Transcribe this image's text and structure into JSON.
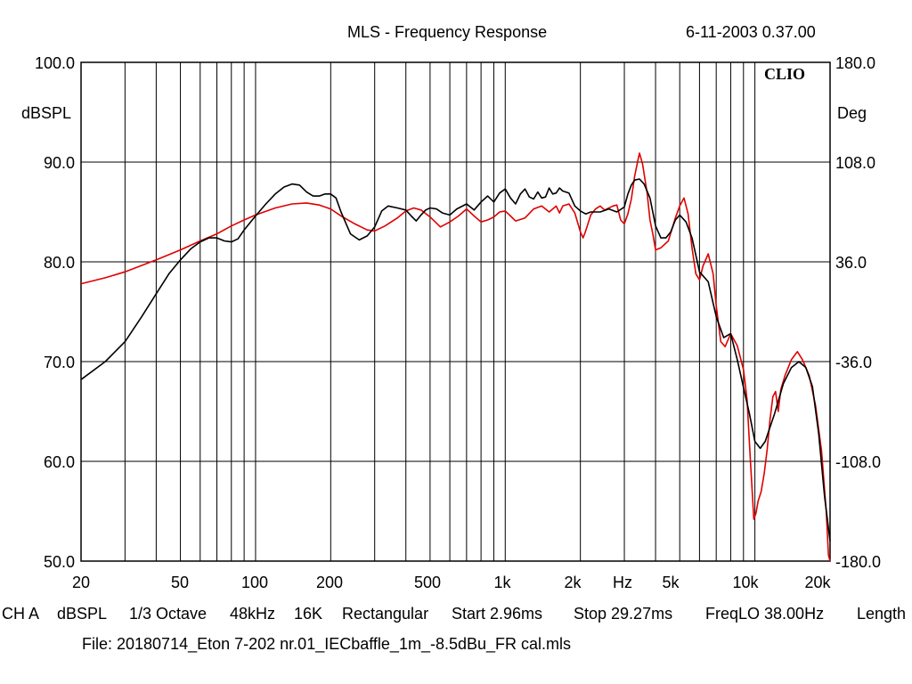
{
  "header": {
    "title": "MLS - Frequency Response",
    "datetime": "6-11-2003 0.37.00"
  },
  "brand": "CLIO",
  "axes": {
    "left_unit": "dBSPL",
    "right_unit": "Deg",
    "left_ticks": [
      "100.0",
      "90.0",
      "80.0",
      "70.0",
      "60.0",
      "50.0"
    ],
    "right_ticks": [
      "180.0",
      "108.0",
      "36.0",
      "-36.0",
      "-108.0",
      "-180.0"
    ],
    "x_ticks": [
      "20",
      "50",
      "100",
      "200",
      "500",
      "1k",
      "2k",
      "Hz",
      "5k",
      "10k",
      "20k"
    ]
  },
  "footer": {
    "settings": [
      "CH A",
      "dBSPL",
      "1/3 Octave",
      "48kHz",
      "16K",
      "Rectangular",
      "Start 2.96ms",
      "Stop 29.27ms",
      "FreqLO 38.00Hz",
      "Length"
    ],
    "file": "File: 20180714_Eton 7-202 nr.01_IECbaffle_1m_-8.5dBu_FR cal.mls"
  },
  "colors": {
    "series_black": "#000000",
    "series_red": "#e00000",
    "grid": "#000000",
    "background": "#ffffff"
  },
  "chart_data": {
    "type": "line",
    "title": "MLS - Frequency Response",
    "xscale": "log",
    "xlim": [
      20,
      20000
    ],
    "ylim": [
      50,
      100
    ],
    "ylim_right": [
      -180,
      180
    ],
    "ylabel": "dBSPL",
    "ylabel_right": "Deg",
    "grid": true,
    "series": [
      {
        "color": "#000000",
        "points": [
          [
            20,
            68.2
          ],
          [
            25,
            70.0
          ],
          [
            30,
            72.0
          ],
          [
            35,
            74.5
          ],
          [
            40,
            76.8
          ],
          [
            45,
            78.8
          ],
          [
            50,
            80.2
          ],
          [
            55,
            81.3
          ],
          [
            60,
            82.0
          ],
          [
            65,
            82.4
          ],
          [
            70,
            82.4
          ],
          [
            75,
            82.1
          ],
          [
            80,
            82.0
          ],
          [
            85,
            82.3
          ],
          [
            90,
            83.2
          ],
          [
            100,
            84.6
          ],
          [
            110,
            85.8
          ],
          [
            120,
            86.8
          ],
          [
            130,
            87.5
          ],
          [
            140,
            87.8
          ],
          [
            150,
            87.7
          ],
          [
            160,
            87.0
          ],
          [
            170,
            86.6
          ],
          [
            180,
            86.6
          ],
          [
            190,
            86.8
          ],
          [
            200,
            86.8
          ],
          [
            210,
            86.4
          ],
          [
            220,
            85.0
          ],
          [
            240,
            82.8
          ],
          [
            260,
            82.2
          ],
          [
            280,
            82.6
          ],
          [
            300,
            83.5
          ],
          [
            320,
            85.1
          ],
          [
            340,
            85.6
          ],
          [
            370,
            85.4
          ],
          [
            400,
            85.2
          ],
          [
            420,
            84.6
          ],
          [
            440,
            84.1
          ],
          [
            460,
            84.7
          ],
          [
            480,
            85.2
          ],
          [
            500,
            85.4
          ],
          [
            530,
            85.3
          ],
          [
            560,
            84.9
          ],
          [
            600,
            84.7
          ],
          [
            640,
            85.3
          ],
          [
            700,
            85.8
          ],
          [
            750,
            85.2
          ],
          [
            800,
            86.0
          ],
          [
            850,
            86.6
          ],
          [
            900,
            86.0
          ],
          [
            950,
            86.9
          ],
          [
            1000,
            87.3
          ],
          [
            1050,
            86.4
          ],
          [
            1100,
            85.8
          ],
          [
            1150,
            86.8
          ],
          [
            1200,
            87.3
          ],
          [
            1250,
            86.5
          ],
          [
            1300,
            86.3
          ],
          [
            1350,
            87.0
          ],
          [
            1400,
            86.4
          ],
          [
            1450,
            86.5
          ],
          [
            1500,
            87.4
          ],
          [
            1550,
            86.8
          ],
          [
            1600,
            86.9
          ],
          [
            1650,
            87.4
          ],
          [
            1700,
            87.1
          ],
          [
            1800,
            86.9
          ],
          [
            1900,
            85.6
          ],
          [
            2000,
            85.1
          ],
          [
            2100,
            84.8
          ],
          [
            2200,
            85.0
          ],
          [
            2400,
            85.0
          ],
          [
            2600,
            85.3
          ],
          [
            2800,
            85.0
          ],
          [
            3000,
            85.5
          ],
          [
            3100,
            86.8
          ],
          [
            3200,
            87.7
          ],
          [
            3300,
            88.2
          ],
          [
            3450,
            88.3
          ],
          [
            3600,
            87.8
          ],
          [
            3800,
            86.4
          ],
          [
            4000,
            83.6
          ],
          [
            4200,
            82.4
          ],
          [
            4400,
            82.4
          ],
          [
            4600,
            83.0
          ],
          [
            4800,
            84.2
          ],
          [
            5000,
            84.7
          ],
          [
            5300,
            84.0
          ],
          [
            5600,
            82.4
          ],
          [
            6000,
            79.0
          ],
          [
            6500,
            78.0
          ],
          [
            7000,
            74.5
          ],
          [
            7500,
            72.4
          ],
          [
            8000,
            72.8
          ],
          [
            8500,
            70.2
          ],
          [
            9000,
            67.4
          ],
          [
            9500,
            64.8
          ],
          [
            10000,
            62.0
          ],
          [
            10500,
            61.3
          ],
          [
            11000,
            62.0
          ],
          [
            12000,
            64.8
          ],
          [
            13000,
            67.8
          ],
          [
            14000,
            69.4
          ],
          [
            15000,
            70.0
          ],
          [
            16000,
            69.4
          ],
          [
            17000,
            67.5
          ],
          [
            18000,
            62.8
          ],
          [
            19000,
            56.5
          ],
          [
            20000,
            52.0
          ]
        ]
      },
      {
        "color": "#e00000",
        "points": [
          [
            20,
            77.8
          ],
          [
            25,
            78.4
          ],
          [
            30,
            79.0
          ],
          [
            40,
            80.2
          ],
          [
            50,
            81.2
          ],
          [
            60,
            82.1
          ],
          [
            70,
            82.8
          ],
          [
            80,
            83.6
          ],
          [
            90,
            84.2
          ],
          [
            100,
            84.7
          ],
          [
            120,
            85.4
          ],
          [
            140,
            85.8
          ],
          [
            160,
            85.9
          ],
          [
            180,
            85.7
          ],
          [
            200,
            85.3
          ],
          [
            220,
            84.6
          ],
          [
            250,
            83.8
          ],
          [
            280,
            83.2
          ],
          [
            300,
            83.1
          ],
          [
            330,
            83.6
          ],
          [
            370,
            84.4
          ],
          [
            400,
            85.1
          ],
          [
            430,
            85.4
          ],
          [
            460,
            85.2
          ],
          [
            500,
            84.5
          ],
          [
            550,
            83.5
          ],
          [
            600,
            84.0
          ],
          [
            650,
            84.6
          ],
          [
            700,
            85.3
          ],
          [
            750,
            84.6
          ],
          [
            800,
            84.0
          ],
          [
            850,
            84.2
          ],
          [
            900,
            84.5
          ],
          [
            950,
            85.0
          ],
          [
            1000,
            85.1
          ],
          [
            1050,
            84.6
          ],
          [
            1100,
            84.1
          ],
          [
            1200,
            84.4
          ],
          [
            1300,
            85.3
          ],
          [
            1400,
            85.6
          ],
          [
            1500,
            85.0
          ],
          [
            1550,
            85.3
          ],
          [
            1600,
            85.6
          ],
          [
            1650,
            84.9
          ],
          [
            1700,
            85.6
          ],
          [
            1800,
            85.8
          ],
          [
            1900,
            84.9
          ],
          [
            2000,
            83.0
          ],
          [
            2050,
            82.4
          ],
          [
            2100,
            83.1
          ],
          [
            2200,
            84.7
          ],
          [
            2300,
            85.3
          ],
          [
            2400,
            85.6
          ],
          [
            2500,
            85.2
          ],
          [
            2700,
            85.6
          ],
          [
            2800,
            85.7
          ],
          [
            2900,
            84.2
          ],
          [
            3000,
            83.8
          ],
          [
            3100,
            84.8
          ],
          [
            3200,
            86.3
          ],
          [
            3300,
            88.6
          ],
          [
            3400,
            90.2
          ],
          [
            3450,
            90.9
          ],
          [
            3550,
            89.8
          ],
          [
            3700,
            86.9
          ],
          [
            3800,
            84.2
          ],
          [
            3900,
            82.8
          ],
          [
            4000,
            81.2
          ],
          [
            4200,
            81.4
          ],
          [
            4500,
            82.1
          ],
          [
            4800,
            84.4
          ],
          [
            5000,
            85.6
          ],
          [
            5200,
            86.4
          ],
          [
            5400,
            84.8
          ],
          [
            5600,
            81.4
          ],
          [
            5800,
            78.8
          ],
          [
            6000,
            78.2
          ],
          [
            6200,
            79.6
          ],
          [
            6500,
            80.8
          ],
          [
            6800,
            78.8
          ],
          [
            7000,
            75.6
          ],
          [
            7300,
            72.0
          ],
          [
            7600,
            71.5
          ],
          [
            8000,
            72.8
          ],
          [
            8500,
            71.6
          ],
          [
            9000,
            69.2
          ],
          [
            9300,
            66.2
          ],
          [
            9600,
            60.0
          ],
          [
            9900,
            54.2
          ],
          [
            10100,
            54.8
          ],
          [
            10300,
            56.0
          ],
          [
            10600,
            57.0
          ],
          [
            10900,
            58.8
          ],
          [
            11200,
            61.2
          ],
          [
            11500,
            64.2
          ],
          [
            11800,
            66.5
          ],
          [
            12100,
            67.0
          ],
          [
            12400,
            65.0
          ],
          [
            12700,
            67.2
          ],
          [
            13200,
            68.6
          ],
          [
            14000,
            70.2
          ],
          [
            14800,
            71.0
          ],
          [
            15500,
            70.2
          ],
          [
            16500,
            68.6
          ],
          [
            17500,
            65.6
          ],
          [
            18500,
            61.0
          ],
          [
            19300,
            55.0
          ],
          [
            19700,
            50.6
          ],
          [
            20000,
            50.0
          ]
        ]
      }
    ]
  }
}
